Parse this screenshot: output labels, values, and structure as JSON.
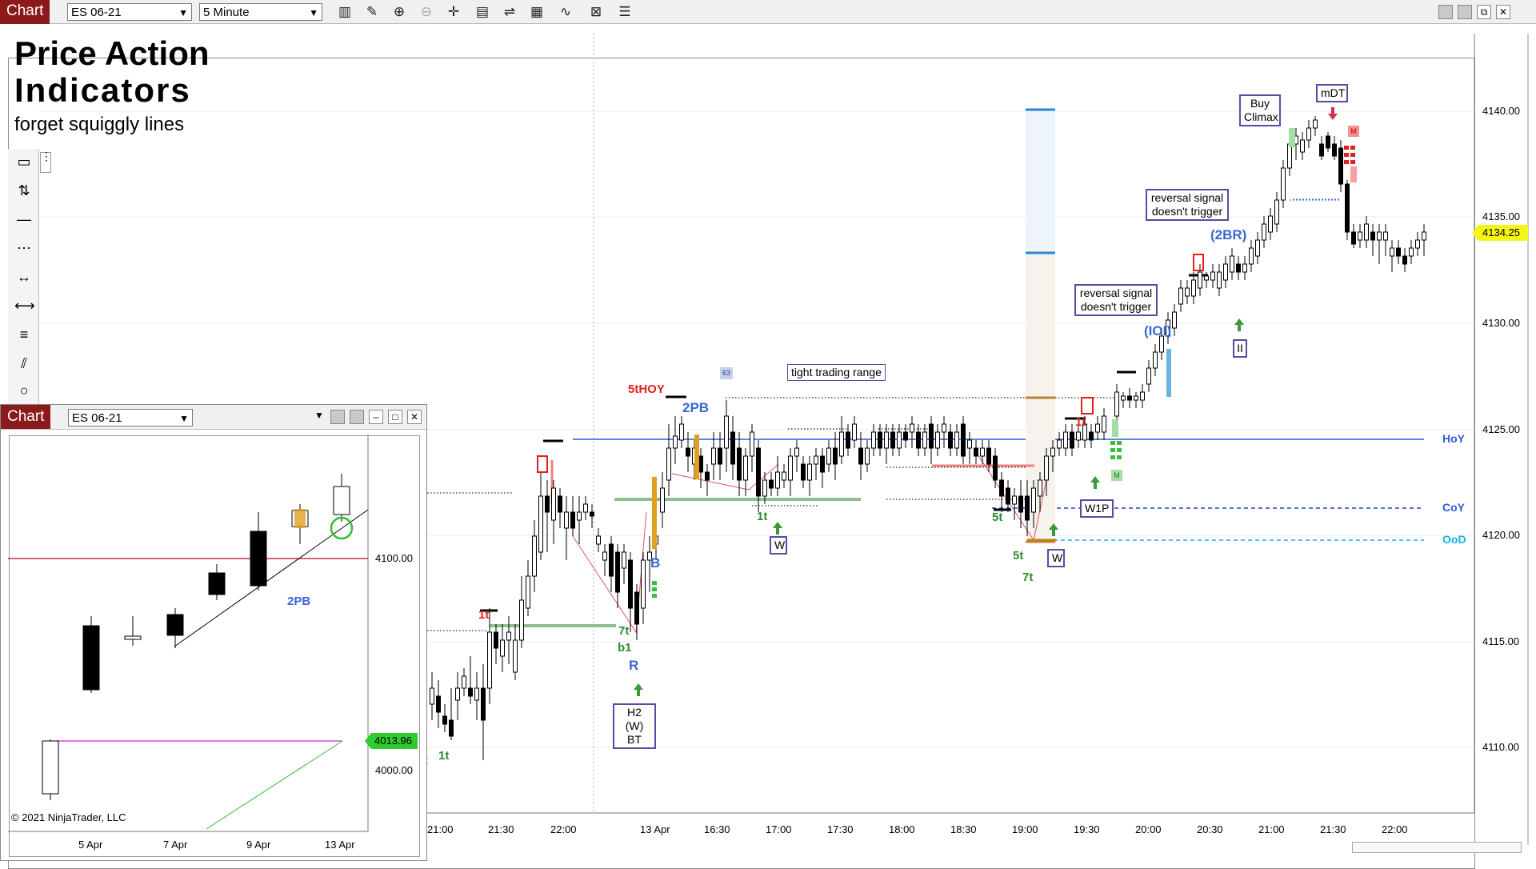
{
  "toolbar": {
    "chart_tab": "Chart",
    "instrument": "ES 06-21",
    "interval": "5 Minute",
    "icons": [
      "bar-type-icon",
      "draw-icon",
      "zoom-in-icon",
      "zoom-out-icon",
      "crosshair-icon",
      "properties-icon",
      "data-series-icon",
      "strategies-icon",
      "indicators-icon",
      "templates-icon",
      "list-icon"
    ],
    "window_buttons": [
      "minimize",
      "restore",
      "maximize",
      "close"
    ]
  },
  "title": {
    "line1": "Price Action",
    "line2": "Indicators",
    "line3": "forget squiggly lines"
  },
  "main_chart": {
    "price_labels": [
      "4140.00",
      "4135.00",
      "4130.00",
      "4125.00",
      "4120.00",
      "4115.00",
      "4110.00"
    ],
    "last_price": "4134.25",
    "time_labels": [
      "21:00",
      "21:30",
      "22:00",
      "13 Apr",
      "16:30",
      "17:00",
      "17:30",
      "18:00",
      "18:30",
      "19:00",
      "19:30",
      "20:00",
      "20:30",
      "21:00",
      "21:30",
      "22:00"
    ],
    "level_labels": {
      "hoy": "HoY",
      "coy": "CoY",
      "ood": "OoD"
    },
    "colors": {
      "hoy": "#2a5bd7",
      "coy": "#1a3be0",
      "ood": "#1ab0e0",
      "bull": "#2e8b2e",
      "bear": "#d02020",
      "label_blue": "#3a66d4",
      "last_price_bg": "#f5f516"
    },
    "annotations": {
      "five_t_hoy": "5tHOY",
      "two_pb": "2PB",
      "tight_tr": "tight trading range",
      "badge_63": "63",
      "one_t_a": "1t",
      "one_t_b": "1t",
      "one_t_c": "1t",
      "one_t_d": "1t",
      "seven_t_a": "7t",
      "b1": "b1",
      "r_label": "R",
      "b_label": "B",
      "h2_w_bt_1": "H2 (W)",
      "h2_w_bt_2": "BT",
      "w_label_a": "W",
      "w_label_b": "W",
      "five_t_a": "5t",
      "five_t_b": "5t",
      "seven_t_b": "7t",
      "w1p": "W1P",
      "rev_sig_1a": "reversal signal",
      "rev_sig_1b": "doesn't trigger",
      "rev_sig_2a": "reversal signal",
      "rev_sig_2b": "doesn't trigger",
      "iol": "(IOI)",
      "two_br": "(2BR)",
      "ii": "II",
      "buy_climax_1": "Buy",
      "buy_climax_2": "Climax",
      "mdt": "mDT",
      "m_badge_a": "M",
      "m_badge_b": "M",
      "t_label": "t"
    }
  },
  "sub_chart": {
    "chart_tab": "Chart",
    "instrument": "ES 06-21",
    "price_labels": [
      "4100.00",
      "4000.00"
    ],
    "current_price": "4013.96",
    "date_labels": [
      "5 Apr",
      "7 Apr",
      "9 Apr",
      "13 Apr"
    ],
    "label_2pb": "2PB",
    "copyright": "© 2021 NinjaTrader, LLC",
    "colors": {
      "red_line": "#c03040",
      "magenta_line": "#e040e0",
      "green_line": "#30c030",
      "price_bg": "#2ecc2e"
    }
  }
}
